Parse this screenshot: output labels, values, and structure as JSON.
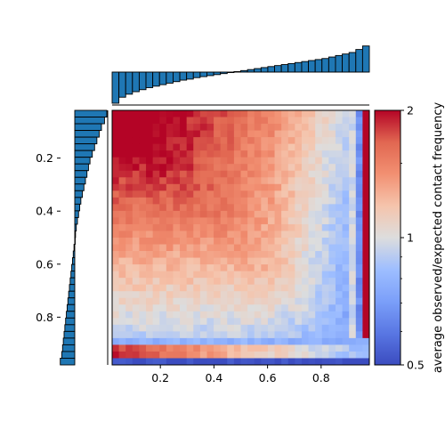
{
  "chart_data": {
    "type": "heatmap",
    "title": "",
    "xlabel": "",
    "ylabel": "",
    "xlim": [
      0.02,
      0.98
    ],
    "ylim": [
      0.98,
      0.02
    ],
    "grid": false,
    "x_ticks": [
      {
        "value": 0.2,
        "label": "0.2"
      },
      {
        "value": 0.4,
        "label": "0.4"
      },
      {
        "value": 0.6,
        "label": "0.6"
      },
      {
        "value": 0.8,
        "label": "0.8"
      }
    ],
    "y_ticks": [
      {
        "value": 0.2,
        "label": "0.2"
      },
      {
        "value": 0.4,
        "label": "0.4"
      },
      {
        "value": 0.6,
        "label": "0.6"
      },
      {
        "value": 0.8,
        "label": "0.8"
      }
    ],
    "colorbar": {
      "label": "average observed/expected contact frequency",
      "colormap": "coolwarm",
      "scale": "log",
      "range": [
        0.5,
        2
      ],
      "ticks": [
        {
          "value": 0.5,
          "label": "0.5"
        },
        {
          "value": 1,
          "label": "1"
        },
        {
          "value": 2,
          "label": "2"
        }
      ]
    },
    "marginal_top": {
      "type": "bar",
      "baseline": "zero",
      "values": [
        -0.62,
        -0.5,
        -0.44,
        -0.39,
        -0.35,
        -0.31,
        -0.28,
        -0.25,
        -0.22,
        -0.19,
        -0.16,
        -0.14,
        -0.11,
        -0.09,
        -0.07,
        -0.05,
        -0.03,
        -0.01,
        0.01,
        0.03,
        0.05,
        0.07,
        0.09,
        0.11,
        0.13,
        0.15,
        0.17,
        0.19,
        0.21,
        0.23,
        0.25,
        0.27,
        0.3,
        0.33,
        0.36,
        0.39,
        0.45,
        0.52
      ]
    },
    "marginal_left": {
      "type": "bar",
      "baseline": "zero",
      "values": [
        -0.42,
        -0.39,
        -0.35,
        -0.32,
        -0.29,
        -0.26,
        -0.23,
        -0.2,
        -0.18,
        -0.16,
        -0.14,
        -0.12,
        -0.1,
        -0.08,
        -0.065,
        -0.05,
        -0.035,
        -0.02,
        -0.01,
        0.0,
        0.01,
        0.02,
        0.03,
        0.04,
        0.05,
        0.06,
        0.07,
        0.08,
        0.09,
        0.1,
        0.11,
        0.12,
        0.13,
        0.14,
        0.15,
        0.16,
        0.17,
        0.19
      ]
    },
    "colors": {
      "bar_fill": "#1f77b4",
      "bar_edge": "#000000",
      "map_low": "#3b4cc0",
      "map_mid": "#dddddd",
      "map_high": "#b40426"
    }
  }
}
